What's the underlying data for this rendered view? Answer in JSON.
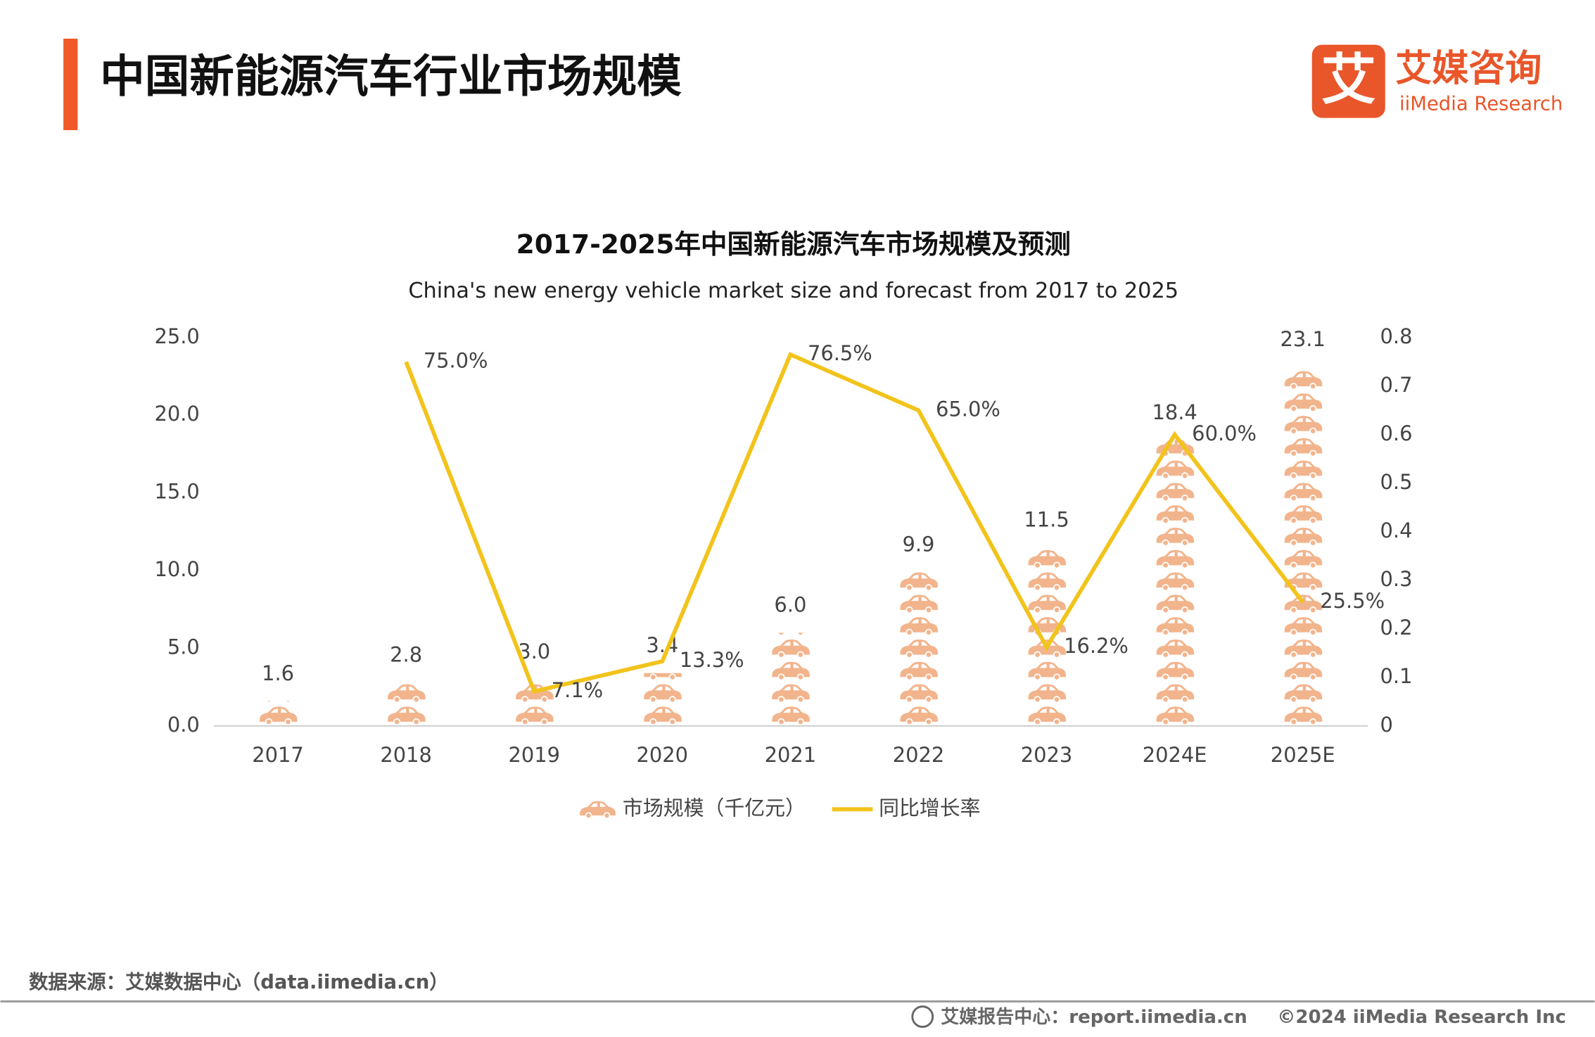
{
  "header": {
    "title": "中国新能源汽车行业市场规模",
    "logo_mark": "艾",
    "logo_name": "艾媒咨询",
    "logo_sub": "iiMedia Research"
  },
  "chart_data": {
    "type": "bar",
    "title": "2017-2025年中国新能源汽车市场规模及预测",
    "subtitle": "China's new energy vehicle market size and forecast from 2017 to 2025",
    "categories": [
      "2017",
      "2018",
      "2019",
      "2020",
      "2021",
      "2022",
      "2023",
      "2024E",
      "2025E"
    ],
    "series": [
      {
        "name": "市场规模（千亿元）",
        "type": "bar",
        "color": "#f2b48c",
        "values": [
          1.6,
          2.8,
          3.0,
          3.4,
          6.0,
          9.9,
          11.5,
          18.4,
          23.1
        ],
        "value_labels": [
          "1.6",
          "2.8",
          "3.0",
          "3.4",
          "6.0",
          "9.9",
          "11.5",
          "18.4",
          "23.1"
        ]
      },
      {
        "name": "同比增长率",
        "type": "line",
        "axis": "y2",
        "color": "#f2c31b",
        "values": [
          null,
          0.75,
          0.071,
          0.133,
          0.765,
          0.65,
          0.162,
          0.6,
          0.255
        ],
        "value_labels": [
          null,
          "75.0%",
          "7.1%",
          "13.3%",
          "76.5%",
          "65.0%",
          "16.2%",
          "60.0%",
          "25.5%"
        ]
      }
    ],
    "ylim": [
      0,
      25
    ],
    "yticks": [
      {
        "value": 0,
        "label": "0.0"
      },
      {
        "value": 5,
        "label": "5.0"
      },
      {
        "value": 10,
        "label": "10.0"
      },
      {
        "value": 15,
        "label": "15.0"
      },
      {
        "value": 20,
        "label": "20.0"
      },
      {
        "value": 25,
        "label": "25.0"
      }
    ],
    "y2lim": [
      0,
      0.8
    ],
    "y2ticks": [
      0,
      0.1,
      0.2,
      0.3,
      0.4,
      0.5,
      0.6,
      0.7,
      0.8
    ]
  },
  "footer": {
    "source": "数据来源：艾媒数据中心（data.iimedia.cn）",
    "report": "艾媒报告中心：report.iimedia.cn",
    "copyright": "©2024  iiMedia Research  Inc"
  }
}
